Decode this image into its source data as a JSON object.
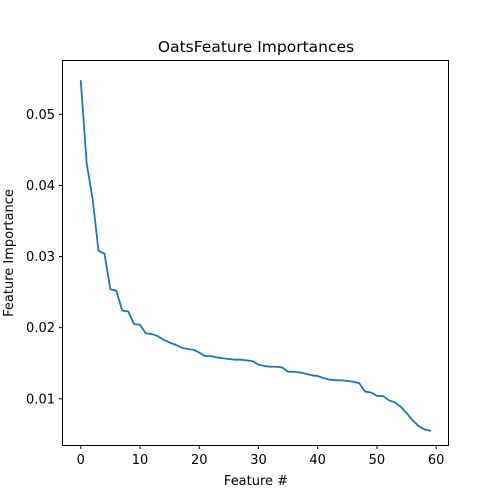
{
  "chart_data": {
    "type": "line",
    "title": "OatsFeature Importances",
    "xlabel": "Feature #",
    "ylabel": "Feature Importance",
    "xlim": [
      -3,
      62
    ],
    "ylim": [
      0.0035,
      0.0575
    ],
    "xticks": [
      0,
      10,
      20,
      30,
      40,
      50,
      60
    ],
    "xtick_labels": [
      "0",
      "10",
      "20",
      "30",
      "40",
      "50",
      "60"
    ],
    "yticks": [
      0.01,
      0.02,
      0.03,
      0.04,
      0.05
    ],
    "ytick_labels": [
      "0.01",
      "0.02",
      "0.03",
      "0.04",
      "0.05"
    ],
    "grid": false,
    "legend": "none",
    "series": [
      {
        "color": "#1f77b4",
        "x": [
          0,
          1,
          2,
          3,
          4,
          5,
          6,
          7,
          8,
          9,
          10,
          11,
          12,
          13,
          14,
          15,
          16,
          17,
          18,
          19,
          20,
          21,
          22,
          23,
          24,
          25,
          26,
          27,
          28,
          29,
          30,
          31,
          32,
          33,
          34,
          35,
          36,
          37,
          38,
          39,
          40,
          41,
          42,
          43,
          44,
          45,
          46,
          47,
          48,
          49,
          50,
          51,
          52,
          53,
          54,
          55,
          56,
          57,
          58,
          59
        ],
        "values": [
          0.0547,
          0.0431,
          0.0381,
          0.0308,
          0.0304,
          0.0254,
          0.0252,
          0.0224,
          0.0223,
          0.0205,
          0.0204,
          0.0192,
          0.0191,
          0.0188,
          0.0183,
          0.0179,
          0.0176,
          0.0172,
          0.017,
          0.0169,
          0.0165,
          0.016,
          0.016,
          0.0158,
          0.0157,
          0.0156,
          0.0155,
          0.0155,
          0.0154,
          0.0153,
          0.0148,
          0.0146,
          0.0145,
          0.0145,
          0.0144,
          0.0138,
          0.0138,
          0.0137,
          0.0135,
          0.0133,
          0.0132,
          0.0129,
          0.0127,
          0.0126,
          0.0126,
          0.0125,
          0.0124,
          0.0122,
          0.011,
          0.0109,
          0.0104,
          0.0104,
          0.0098,
          0.0095,
          0.0089,
          0.008,
          0.007,
          0.0062,
          0.0057,
          0.0055
        ]
      }
    ]
  }
}
